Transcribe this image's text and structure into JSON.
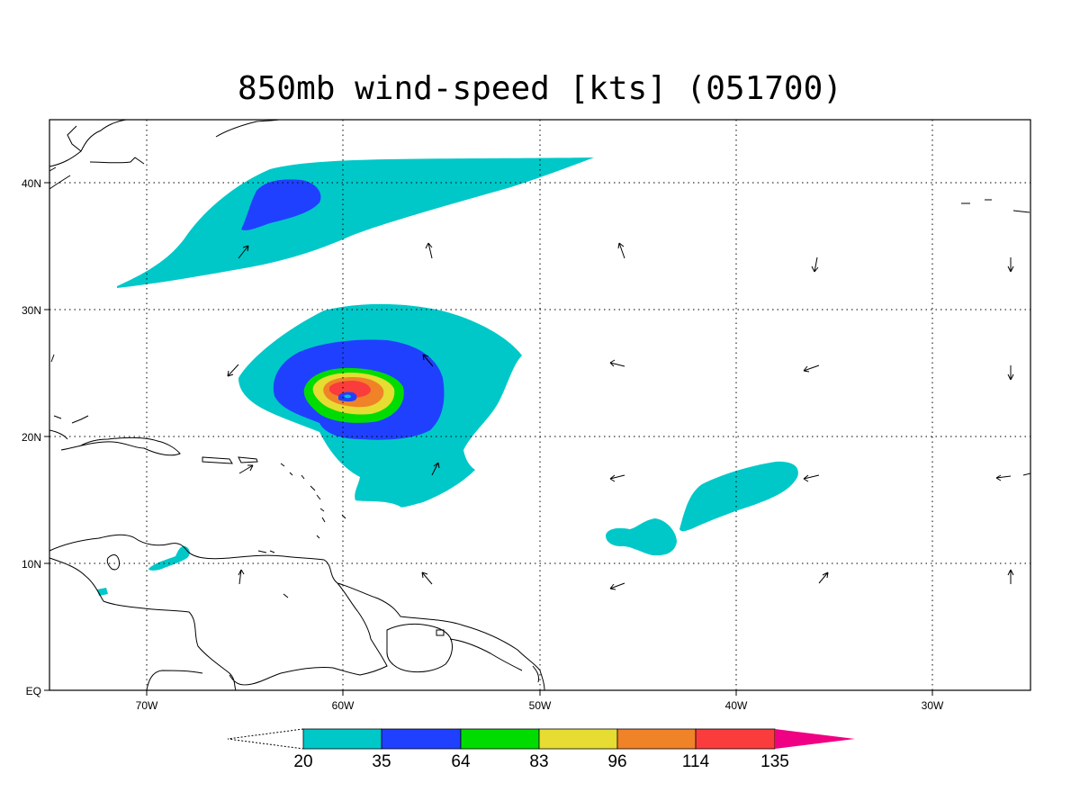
{
  "title": "850mb wind-speed [kts] (051700)",
  "lon_ticks": [
    "70W",
    "60W",
    "50W",
    "40W",
    "30W"
  ],
  "lat_ticks": [
    "40N",
    "30N",
    "20N",
    "10N",
    "EQ"
  ],
  "colorbar": {
    "levels": [
      "20",
      "35",
      "64",
      "83",
      "96",
      "114",
      "135"
    ],
    "colors": [
      "#00c8c8",
      "#2040ff",
      "#00dc00",
      "#e6dc32",
      "#f08228",
      "#fa3c3c",
      "#f00082"
    ]
  },
  "map_extent": {
    "lon_min": -75,
    "lon_max": -25,
    "lat_min": 0,
    "lat_max": 45
  }
}
